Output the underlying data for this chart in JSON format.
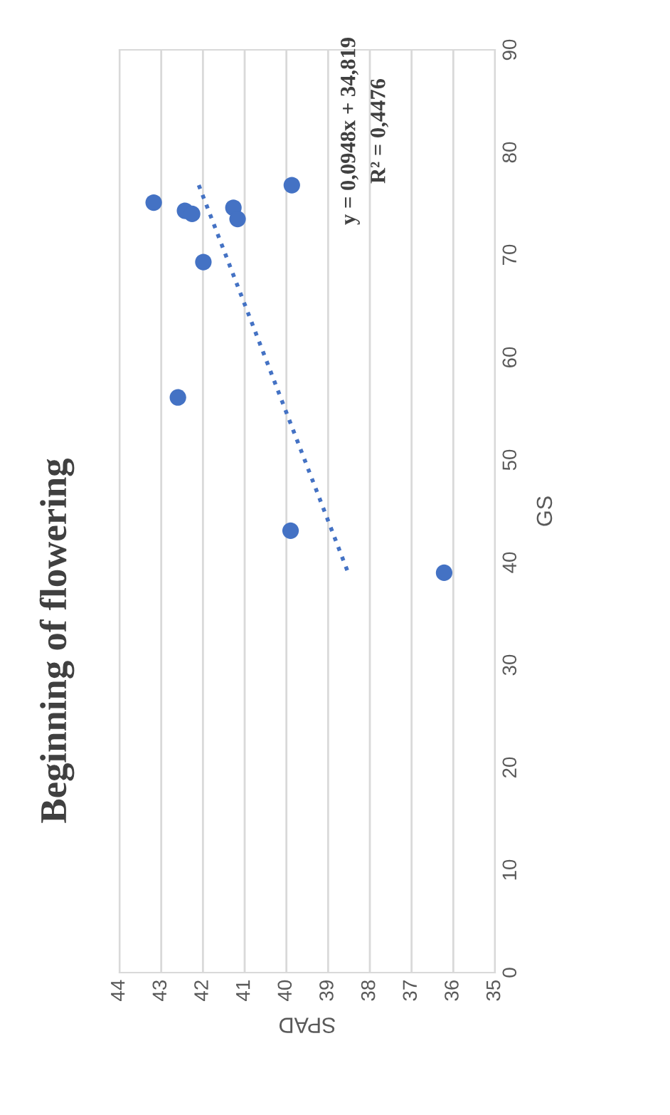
{
  "chart_data": {
    "type": "scatter",
    "title": "Beginning of flowering",
    "xlabel": "SPAD",
    "ylabel": "GS",
    "x": [
      43.18,
      42.43,
      42.26,
      41.99,
      42.6,
      41.27,
      41.17,
      39.87,
      39.9,
      36.22
    ],
    "series": [
      {
        "color": "#4472c4",
        "marker": "circle",
        "values": [
          75.1,
          74.3,
          74.0,
          69.3,
          56.1,
          74.6,
          73.5,
          76.8,
          43.1,
          39.0
        ]
      },
      {
        "type": "line",
        "color": "#4472c4",
        "line_style": "dotted",
        "marker": "none",
        "x": [
          42.1,
          38.52
        ],
        "values": [
          76.8,
          39.0
        ]
      }
    ],
    "annotations": [
      "y = 0,0948x + 34,819",
      "R² = 0,4476"
    ],
    "xlim": [
      44,
      35
    ],
    "xticks": [
      44,
      43,
      42,
      41,
      40,
      39,
      38,
      37,
      36,
      35
    ],
    "ylim": [
      0,
      90
    ],
    "yticks": [
      0,
      10,
      20,
      30,
      40,
      50,
      60,
      70,
      80,
      90
    ],
    "grid": "x"
  }
}
